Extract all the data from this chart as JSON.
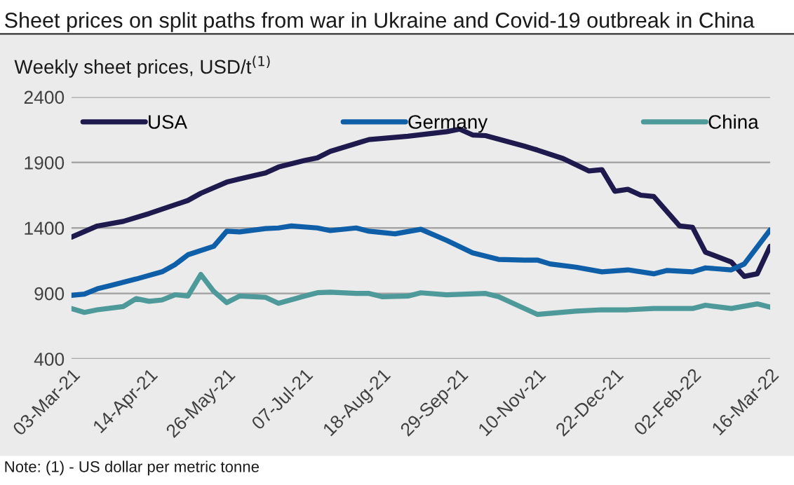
{
  "chart_data": {
    "type": "line",
    "title": "Sheet prices on split paths from war in Ukraine and Covid-19 outbreak in China",
    "ylabel": "Weekly sheet prices, USD/t$^{(1)}$",
    "annotations": [
      "Note: (1) - US dollar per metric tonne"
    ],
    "series": [
      {
        "name": "USA",
        "color": "#1f1a4d",
        "x": [
          "2021-03-03",
          "2021-03-17",
          "2021-03-31",
          "2021-04-14",
          "2021-05-05",
          "2021-05-12",
          "2021-05-26",
          "2021-06-02",
          "2021-06-16",
          "2021-06-23",
          "2021-07-07",
          "2021-07-14",
          "2021-07-21",
          "2021-08-04",
          "2021-08-11",
          "2021-09-01",
          "2021-09-22",
          "2021-09-29",
          "2021-10-06",
          "2021-10-13",
          "2021-11-03",
          "2021-11-10",
          "2021-11-24",
          "2021-12-08",
          "2021-12-15",
          "2021-12-22",
          "2021-12-29",
          "2022-01-05",
          "2022-01-12",
          "2022-01-26",
          "2022-02-02",
          "2022-02-09",
          "2022-02-23",
          "2022-03-02",
          "2022-03-09",
          "2022-03-16"
        ],
        "values": [
          1330,
          1415,
          1450,
          1510,
          1610,
          1665,
          1750,
          1775,
          1820,
          1865,
          1915,
          1935,
          1985,
          2045,
          2075,
          2100,
          2135,
          2155,
          2110,
          2105,
          2025,
          1995,
          1930,
          1835,
          1845,
          1680,
          1695,
          1650,
          1640,
          1415,
          1405,
          1215,
          1140,
          1030,
          1050,
          1260
        ]
      },
      {
        "name": "Germany",
        "color": "#0f5fa8",
        "x": [
          "2021-03-03",
          "2021-03-10",
          "2021-03-17",
          "2021-03-24",
          "2021-04-07",
          "2021-04-21",
          "2021-04-28",
          "2021-05-05",
          "2021-05-19",
          "2021-05-26",
          "2021-06-02",
          "2021-06-16",
          "2021-06-23",
          "2021-06-30",
          "2021-07-14",
          "2021-07-21",
          "2021-08-04",
          "2021-08-11",
          "2021-08-25",
          "2021-09-08",
          "2021-09-22",
          "2021-10-06",
          "2021-10-20",
          "2021-11-03",
          "2021-11-10",
          "2021-11-17",
          "2021-12-01",
          "2021-12-15",
          "2021-12-29",
          "2022-01-12",
          "2022-01-19",
          "2022-02-02",
          "2022-02-09",
          "2022-02-23",
          "2022-03-02",
          "2022-03-16"
        ],
        "values": [
          885,
          895,
          935,
          960,
          1010,
          1065,
          1120,
          1195,
          1260,
          1375,
          1370,
          1395,
          1400,
          1415,
          1400,
          1380,
          1400,
          1375,
          1355,
          1390,
          1305,
          1210,
          1160,
          1155,
          1155,
          1125,
          1100,
          1065,
          1080,
          1050,
          1075,
          1065,
          1095,
          1080,
          1125,
          1385
        ]
      },
      {
        "name": "China",
        "color": "#4e9a9b",
        "x": [
          "2021-03-03",
          "2021-03-10",
          "2021-03-17",
          "2021-03-31",
          "2021-04-07",
          "2021-04-14",
          "2021-04-21",
          "2021-04-28",
          "2021-05-05",
          "2021-05-12",
          "2021-05-19",
          "2021-05-26",
          "2021-06-02",
          "2021-06-16",
          "2021-06-23",
          "2021-07-07",
          "2021-07-14",
          "2021-07-21",
          "2021-08-04",
          "2021-08-11",
          "2021-08-18",
          "2021-09-01",
          "2021-09-08",
          "2021-09-22",
          "2021-10-13",
          "2021-10-20",
          "2021-11-10",
          "2021-12-01",
          "2021-12-15",
          "2021-12-29",
          "2022-01-12",
          "2022-02-02",
          "2022-02-09",
          "2022-02-23",
          "2022-03-09",
          "2022-03-16"
        ],
        "values": [
          785,
          755,
          775,
          800,
          860,
          840,
          850,
          890,
          880,
          1045,
          915,
          830,
          880,
          870,
          825,
          880,
          905,
          910,
          900,
          900,
          875,
          880,
          905,
          890,
          900,
          875,
          740,
          765,
          775,
          775,
          785,
          785,
          810,
          785,
          820,
          795
        ]
      }
    ],
    "ylim": [
      400,
      2400
    ],
    "yticks": [
      400,
      900,
      1400,
      1900,
      2400
    ],
    "xlim": [
      "2021-03-03",
      "2022-03-16"
    ],
    "xticks": [
      {
        "value": "2021-03-03",
        "label": "03-Mar-21"
      },
      {
        "value": "2021-04-14",
        "label": "14-Apr-21"
      },
      {
        "value": "2021-05-26",
        "label": "26-May-21"
      },
      {
        "value": "2021-07-07",
        "label": "07-Jul-21"
      },
      {
        "value": "2021-08-18",
        "label": "18-Aug-21"
      },
      {
        "value": "2021-09-29",
        "label": "29-Sep-21"
      },
      {
        "value": "2021-11-10",
        "label": "10-Nov-21"
      },
      {
        "value": "2021-12-22",
        "label": "22-Dec-21"
      },
      {
        "value": "2022-02-02",
        "label": "02-Feb-22"
      },
      {
        "value": "2022-03-16",
        "label": "16-Mar-22"
      }
    ],
    "grid": "y",
    "legend": "top",
    "line_style": "solid",
    "marker": "none"
  }
}
